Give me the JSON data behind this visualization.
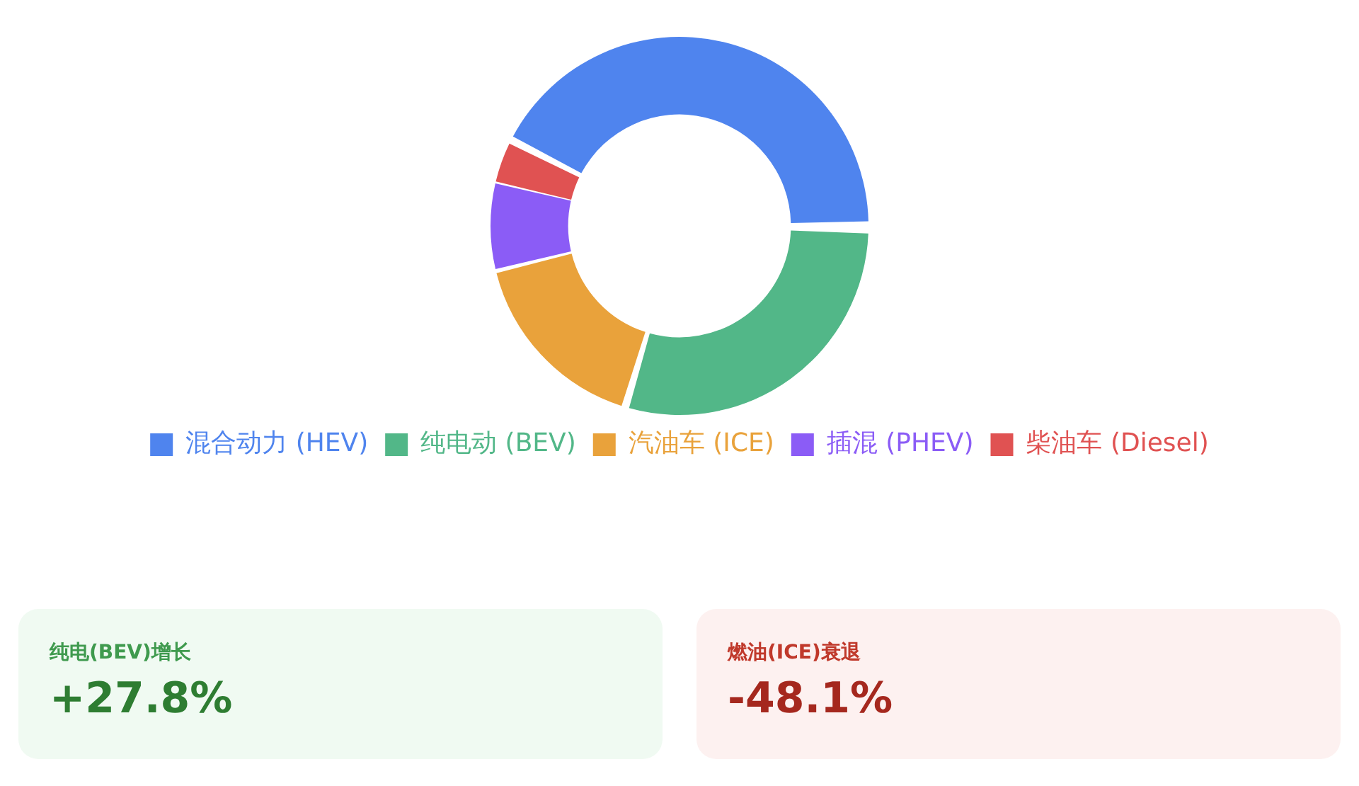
{
  "chart_data": [
    {
      "type": "donut",
      "categories": [
        "混合动力 (HEV)",
        "纯电动 (BEV)",
        "汽油车 (ICE)",
        "插混 (PHEV)",
        "柴油车 (Diesel)"
      ],
      "values": [
        43,
        29.5,
        16.5,
        7.5,
        3.5
      ],
      "colors": [
        "#4f84ee",
        "#52b788",
        "#e9a23b",
        "#8b5cf6",
        "#e05252"
      ],
      "legend": "bottom"
    },
    {
      "type": "other",
      "title": "纯电(BEV)增长",
      "annotations": [
        "+27.8%"
      ]
    },
    {
      "type": "other",
      "title": "燃油(ICE)衰退",
      "annotations": [
        "-48.1%"
      ]
    }
  ]
}
